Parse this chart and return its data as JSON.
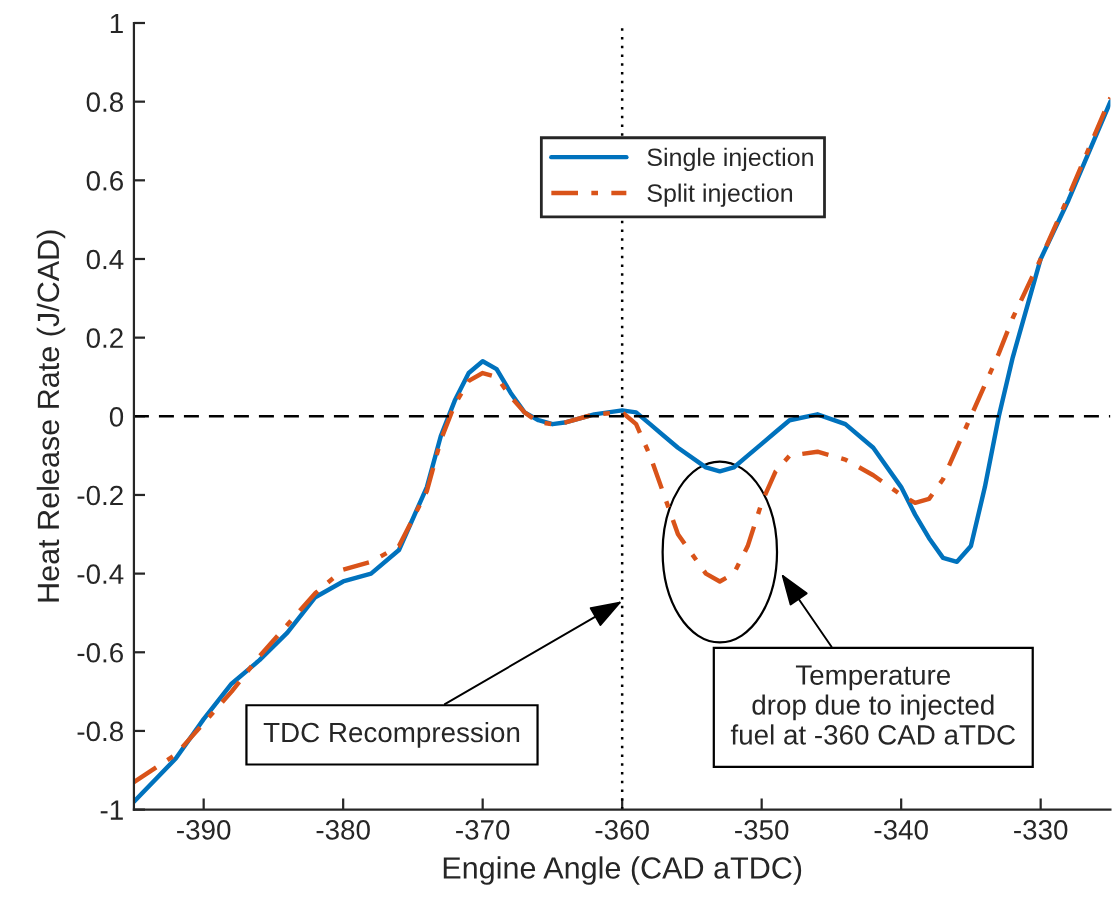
{
  "chart_data": {
    "type": "line",
    "xlabel": "Engine Angle (CAD aTDC)",
    "ylabel": "Heat Release Rate (J/CAD)",
    "x": [
      -395,
      -392,
      -390,
      -388,
      -386,
      -384,
      -382,
      -380,
      -378,
      -376,
      -374,
      -373,
      -372,
      -371,
      -370,
      -369,
      -368,
      -367,
      -366,
      -365,
      -364,
      -362,
      -360,
      -359,
      -358,
      -357,
      -356,
      -354,
      -353,
      -352,
      -351,
      -350,
      -349,
      -348,
      -346,
      -344,
      -342,
      -340,
      -339,
      -338,
      -337,
      -336,
      -335,
      -334,
      -333,
      -332,
      -330,
      -328,
      -325
    ],
    "series": [
      {
        "name": "Single injection",
        "color": "#0072bd",
        "line_style": "solid",
        "values": [
          -0.98,
          -0.87,
          -0.77,
          -0.68,
          -0.62,
          -0.55,
          -0.46,
          -0.42,
          -0.4,
          -0.34,
          -0.18,
          -0.05,
          0.04,
          0.11,
          0.14,
          0.12,
          0.06,
          0.01,
          -0.01,
          -0.02,
          -0.015,
          0.005,
          0.015,
          0.01,
          -0.02,
          -0.05,
          -0.08,
          -0.13,
          -0.14,
          -0.13,
          -0.1,
          -0.07,
          -0.04,
          -0.01,
          0.005,
          -0.02,
          -0.08,
          -0.18,
          -0.25,
          -0.31,
          -0.36,
          -0.37,
          -0.33,
          -0.18,
          0.0,
          0.15,
          0.4,
          0.55,
          0.8
        ]
      },
      {
        "name": "Split injection",
        "color": "#d95319",
        "line_style": "dashdot",
        "values": [
          -0.93,
          -0.86,
          -0.78,
          -0.7,
          -0.61,
          -0.53,
          -0.45,
          -0.39,
          -0.37,
          -0.33,
          -0.19,
          -0.06,
          0.03,
          0.09,
          0.11,
          0.1,
          0.05,
          0.01,
          -0.015,
          -0.02,
          -0.015,
          0.005,
          0.01,
          -0.02,
          -0.1,
          -0.2,
          -0.3,
          -0.4,
          -0.42,
          -0.4,
          -0.33,
          -0.22,
          -0.14,
          -0.1,
          -0.09,
          -0.11,
          -0.15,
          -0.2,
          -0.22,
          -0.21,
          -0.16,
          -0.08,
          0.0,
          0.08,
          0.16,
          0.25,
          0.4,
          0.56,
          0.81
        ]
      }
    ],
    "xlim": [
      -395,
      -325
    ],
    "xticks": [
      -390,
      -380,
      -370,
      -360,
      -350,
      -340,
      -330
    ],
    "ylim": [
      -1,
      1
    ],
    "yticks": [
      -1,
      -0.8,
      -0.6,
      -0.4,
      -0.2,
      0,
      0.2,
      0.4,
      0.6,
      0.8,
      1
    ],
    "ref_lines": [
      {
        "axis": "y",
        "value": 0,
        "color": "#000000",
        "line_style": "dashed"
      },
      {
        "axis": "x",
        "value": -360,
        "color": "#000000",
        "line_style": "dotted"
      }
    ],
    "annotations": [
      {
        "text": "TDC Recompression",
        "x": -360,
        "y": -0.47
      },
      "Temperature\ndrop due to injected\nfuel at -360 CAD aTDC"
    ],
    "grid": false,
    "legend": "top right",
    "marker": "none"
  }
}
